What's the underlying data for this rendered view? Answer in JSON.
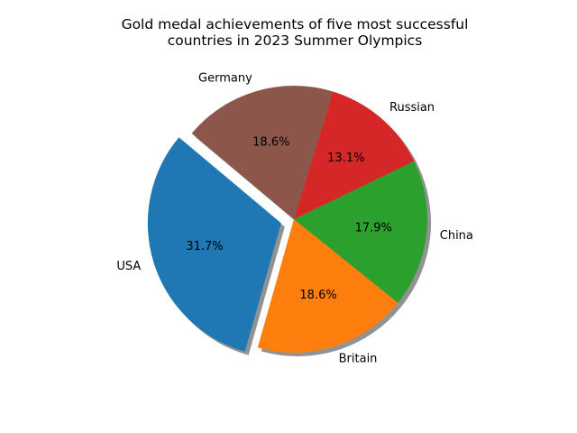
{
  "chart_data": {
    "type": "pie",
    "title_lines": [
      "Gold medal achievements of five most successful",
      "countries in 2023 Summer Olympics"
    ],
    "categories": [
      "USA",
      "Britain",
      "China",
      "Russian",
      "Germany"
    ],
    "percent_labels": [
      "31.7%",
      "18.6%",
      "17.9%",
      "13.1%",
      "18.6%"
    ],
    "values": [
      31.7,
      18.6,
      17.9,
      13.1,
      18.6
    ],
    "colors": [
      "#1f77b4",
      "#ff7f0e",
      "#2ca02c",
      "#d62728",
      "#8c564b"
    ],
    "exploded": [
      "USA"
    ],
    "shadow": true,
    "start_angle_deg": 140,
    "direction": "counterclockwise"
  }
}
